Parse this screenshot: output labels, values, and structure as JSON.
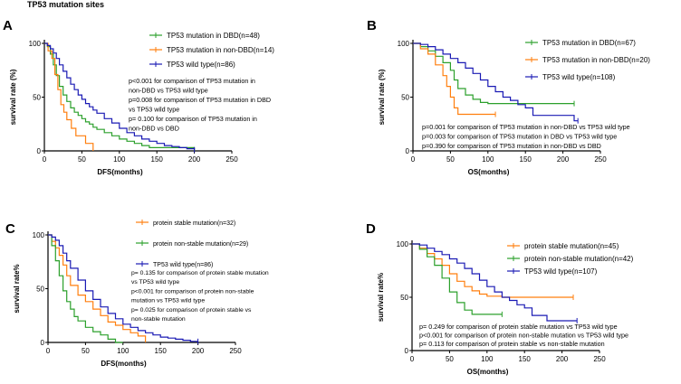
{
  "figure_title": "TP53 mutation sites",
  "colors": {
    "green": "#2ca02c",
    "orange": "#ff7f0e",
    "blue": "#1a1ab4",
    "axis": "#000000"
  },
  "chart_data": [
    {
      "panel": "A",
      "type": "line",
      "xlabel": "DFS(months)",
      "ylabel": "survival rate (%)",
      "xlim": [
        0,
        250
      ],
      "ylim": [
        0,
        100
      ],
      "xticks": [
        0,
        50,
        100,
        150,
        200,
        250
      ],
      "yticks": [
        0,
        50,
        100
      ],
      "series": [
        {
          "name": "TP53 mutation in DBD(n=48)",
          "color": "#2ca02c",
          "x": [
            0,
            4,
            8,
            12,
            16,
            20,
            25,
            30,
            35,
            40,
            45,
            50,
            55,
            60,
            65,
            70,
            80,
            90,
            100,
            110,
            120,
            130,
            140,
            200
          ],
          "y": [
            100,
            97,
            90,
            80,
            70,
            60,
            52,
            46,
            40,
            36,
            33,
            30,
            27,
            25,
            22,
            20,
            17,
            14,
            11,
            9,
            7,
            5,
            3,
            0
          ]
        },
        {
          "name": "TP53 mutation in non-DBD(n=14)",
          "color": "#ff7f0e",
          "x": [
            0,
            5,
            10,
            14,
            18,
            22,
            26,
            30,
            36,
            42,
            50,
            55,
            60,
            65
          ],
          "y": [
            100,
            93,
            86,
            71,
            57,
            43,
            36,
            29,
            21,
            14,
            14,
            7,
            7,
            0
          ]
        },
        {
          "name": "TP53 wild type(n=86)",
          "color": "#1a1ab4",
          "x": [
            0,
            4,
            8,
            12,
            16,
            20,
            25,
            30,
            35,
            40,
            45,
            50,
            55,
            60,
            65,
            70,
            80,
            90,
            100,
            110,
            120,
            130,
            140,
            150,
            160,
            170,
            180,
            190,
            200
          ],
          "y": [
            100,
            98,
            95,
            91,
            86,
            80,
            74,
            68,
            62,
            57,
            52,
            48,
            44,
            41,
            38,
            35,
            30,
            26,
            21,
            17,
            14,
            11,
            9,
            7,
            5,
            4,
            3,
            2,
            1
          ]
        }
      ],
      "annotations": [
        "p<0.001  for comparison of TP53 mutation in",
        "non-DBD vs TP53 wild type",
        "p=0.008 for comparison of TP53 mutation in DBD",
        "vs TP53 wild type",
        "p=  0.100  for comparison of TP53 mutation in",
        "non-DBD vs DBD"
      ]
    },
    {
      "panel": "B",
      "type": "line",
      "xlabel": "OS(months)",
      "ylabel": "survival rate (%)",
      "xlim": [
        0,
        250
      ],
      "ylim": [
        0,
        100
      ],
      "xticks": [
        0,
        50,
        100,
        150,
        200,
        250
      ],
      "yticks": [
        0,
        50,
        100
      ],
      "series": [
        {
          "name": "TP53 mutation in DBD(n=67)",
          "color": "#2ca02c",
          "x": [
            0,
            10,
            20,
            30,
            40,
            50,
            55,
            60,
            70,
            80,
            90,
            100,
            110,
            120,
            215
          ],
          "y": [
            100,
            97,
            93,
            88,
            82,
            75,
            66,
            58,
            52,
            48,
            45,
            44,
            44,
            44,
            44
          ]
        },
        {
          "name": "TP53 mutation in non-DBD(n=20)",
          "color": "#ff7f0e",
          "x": [
            0,
            10,
            20,
            30,
            40,
            45,
            50,
            55,
            60,
            110
          ],
          "y": [
            100,
            95,
            90,
            80,
            70,
            60,
            50,
            40,
            34,
            34
          ]
        },
        {
          "name": "TP53 wild type(n=108)",
          "color": "#1a1ab4",
          "x": [
            0,
            10,
            20,
            30,
            40,
            50,
            60,
            70,
            80,
            90,
            100,
            110,
            120,
            130,
            140,
            150,
            160,
            215,
            220
          ],
          "y": [
            100,
            99,
            97,
            94,
            90,
            86,
            82,
            77,
            72,
            66,
            60,
            55,
            50,
            47,
            43,
            40,
            33,
            28,
            28
          ]
        }
      ],
      "annotations": [
        "p=0.001 for comparison of TP53 mutation in non-DBD vs TP53 wild type",
        "p=0.003 for comparison of TP53 mutation in DBD vs TP53 wild type",
        "p=0.390 for comparison of TP53 mutation in non-DBD vs DBD"
      ]
    },
    {
      "panel": "C",
      "type": "line",
      "xlabel": "DFS(months)",
      "ylabel": "survival rate%",
      "xlim": [
        0,
        250
      ],
      "ylim": [
        0,
        100
      ],
      "xticks": [
        0,
        50,
        100,
        150,
        200,
        250
      ],
      "yticks": [
        0,
        50,
        100
      ],
      "series": [
        {
          "name": "protein stable mutation(n=32)",
          "color": "#ff7f0e",
          "x": [
            0,
            5,
            10,
            15,
            20,
            25,
            30,
            40,
            50,
            60,
            70,
            80,
            90,
            100,
            110,
            120,
            130
          ],
          "y": [
            100,
            94,
            88,
            81,
            72,
            62,
            53,
            44,
            38,
            31,
            25,
            19,
            16,
            12,
            9,
            6,
            0
          ]
        },
        {
          "name": "protein non-stable mutation(n=29)",
          "color": "#2ca02c",
          "x": [
            0,
            5,
            10,
            15,
            20,
            25,
            30,
            35,
            40,
            50,
            60,
            70,
            80,
            90,
            100
          ],
          "y": [
            100,
            90,
            76,
            62,
            48,
            38,
            31,
            24,
            20,
            14,
            10,
            7,
            3,
            0,
            0
          ]
        },
        {
          "name": "TP53 wild type(n=86)",
          "color": "#1a1ab4",
          "x": [
            0,
            5,
            10,
            15,
            20,
            25,
            30,
            40,
            50,
            60,
            70,
            80,
            90,
            100,
            110,
            120,
            130,
            140,
            150,
            160,
            170,
            180,
            190,
            200
          ],
          "y": [
            100,
            98,
            95,
            90,
            83,
            76,
            69,
            58,
            48,
            40,
            33,
            27,
            22,
            17,
            14,
            11,
            9,
            7,
            5,
            4,
            3,
            2,
            1,
            1
          ]
        }
      ],
      "annotations": [
        "p=  0.135 for comparison of protein stable mutation",
        "vs TP53 wild type",
        "p<0.001 for comparison of protein non-stable",
        "mutation vs TP53 wild type",
        "p=  0.025 for comparison of protein stable vs",
        "non-stable mutation"
      ]
    },
    {
      "panel": "D",
      "type": "line",
      "xlabel": "OS(months)",
      "ylabel": "survival rate%",
      "xlim": [
        0,
        250
      ],
      "ylim": [
        0,
        100
      ],
      "xticks": [
        0,
        50,
        100,
        150,
        200,
        250
      ],
      "yticks": [
        0,
        50,
        100
      ],
      "series": [
        {
          "name": "protein stable mutation(n=45)",
          "color": "#ff7f0e",
          "x": [
            0,
            10,
            20,
            30,
            40,
            50,
            60,
            70,
            80,
            90,
            100,
            120,
            150,
            160,
            215
          ],
          "y": [
            100,
            96,
            91,
            86,
            80,
            72,
            65,
            60,
            56,
            53,
            51,
            50,
            50,
            50,
            50
          ]
        },
        {
          "name": "protein non-stable mutation(n=42)",
          "color": "#2ca02c",
          "x": [
            0,
            10,
            20,
            30,
            40,
            50,
            60,
            70,
            80,
            100,
            120
          ],
          "y": [
            100,
            95,
            88,
            80,
            68,
            55,
            45,
            38,
            34,
            34,
            34
          ]
        },
        {
          "name": "TP53 wild type(n=107)",
          "color": "#1a1ab4",
          "x": [
            0,
            10,
            20,
            30,
            40,
            50,
            60,
            70,
            80,
            90,
            100,
            110,
            120,
            130,
            140,
            150,
            160,
            180,
            215,
            220
          ],
          "y": [
            100,
            99,
            96,
            93,
            90,
            86,
            82,
            77,
            72,
            66,
            60,
            55,
            50,
            47,
            43,
            40,
            33,
            28,
            28,
            28
          ]
        }
      ],
      "annotations": [
        "p=  0.249 for comparison of protein stable mutation vs TP53 wild type",
        "p<0.001 for comparison of protein non-stable mutation vs TP53 wild type",
        "p=  0.113 for comparison of protein stable vs non-stable mutation"
      ]
    }
  ]
}
